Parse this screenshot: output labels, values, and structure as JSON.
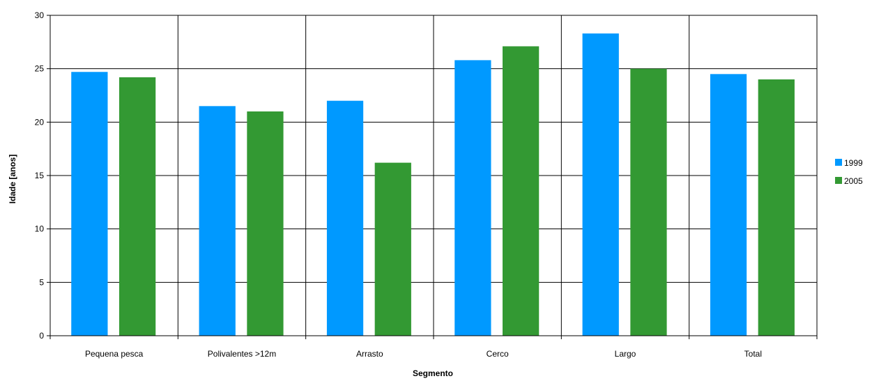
{
  "chart_data": {
    "type": "bar",
    "title": "",
    "xlabel": "Segmento",
    "ylabel": "Idade [anos]",
    "categories": [
      "Pequena pesca",
      "Polivalentes >12m",
      "Arrasto",
      "Cerco",
      "Largo",
      "Total"
    ],
    "series": [
      {
        "name": "1999",
        "color": "#0099ff",
        "values": [
          24.7,
          21.5,
          22.0,
          25.8,
          28.3,
          24.5
        ]
      },
      {
        "name": "2005",
        "color": "#339933",
        "values": [
          24.2,
          21.0,
          16.2,
          27.1,
          25.0,
          24.0
        ]
      }
    ],
    "ylim": [
      0,
      30
    ],
    "yticks": [
      0,
      5,
      10,
      15,
      20,
      25,
      30
    ],
    "grid": true,
    "legend_position": "right"
  }
}
